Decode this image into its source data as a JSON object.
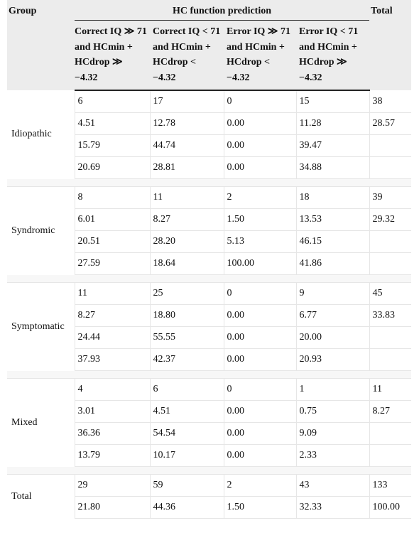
{
  "table": {
    "group_header": "Group",
    "span_header": "HC function prediction",
    "total_header": "Total",
    "sub_headers": [
      "Correct IQ ≫ 71 and HCmin + HCdrop ≫ −4.32",
      "Correct IQ < 71 and HCmin + HCdrop < −4.32",
      "Error IQ ≫ 71 and HCmin + HCdrop < −4.32",
      "Error IQ < 71 and HCmin + HCdrop ≫ −4.32"
    ],
    "groups": [
      {
        "name": "Idiopathic",
        "rows": [
          [
            "6",
            "17",
            "0",
            "15",
            "38"
          ],
          [
            "4.51",
            "12.78",
            "0.00",
            "11.28",
            "28.57"
          ],
          [
            "15.79",
            "44.74",
            "0.00",
            "39.47",
            ""
          ],
          [
            "20.69",
            "28.81",
            "0.00",
            "34.88",
            ""
          ]
        ]
      },
      {
        "name": "Syndromic",
        "rows": [
          [
            "8",
            "11",
            "2",
            "18",
            "39"
          ],
          [
            "6.01",
            "8.27",
            "1.50",
            "13.53",
            "29.32"
          ],
          [
            "20.51",
            "28.20",
            "5.13",
            "46.15",
            ""
          ],
          [
            "27.59",
            "18.64",
            "100.00",
            "41.86",
            ""
          ]
        ]
      },
      {
        "name": "Symptomatic",
        "rows": [
          [
            "11",
            "25",
            "0",
            "9",
            "45"
          ],
          [
            "8.27",
            "18.80",
            "0.00",
            "6.77",
            "33.83"
          ],
          [
            "24.44",
            "55.55",
            "0.00",
            "20.00",
            ""
          ],
          [
            "37.93",
            "42.37",
            "0.00",
            "20.93",
            ""
          ]
        ]
      },
      {
        "name": "Mixed",
        "rows": [
          [
            "4",
            "6",
            "0",
            "1",
            "11"
          ],
          [
            "3.01",
            "4.51",
            "0.00",
            "0.75",
            "8.27"
          ],
          [
            "36.36",
            "54.54",
            "0.00",
            "9.09",
            ""
          ],
          [
            "13.79",
            "10.17",
            "0.00",
            "2.33",
            ""
          ]
        ]
      },
      {
        "name": "Total",
        "rows": [
          [
            "29",
            "59",
            "2",
            "43",
            "133"
          ],
          [
            "21.80",
            "44.36",
            "1.50",
            "32.33",
            "100.00"
          ]
        ]
      }
    ]
  }
}
